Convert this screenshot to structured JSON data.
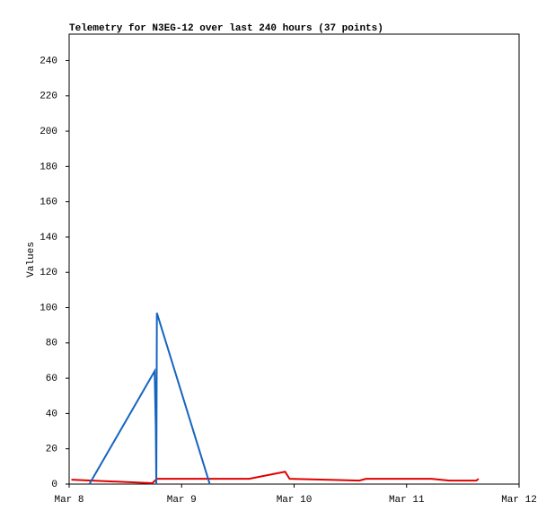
{
  "chart_data": {
    "type": "line",
    "title": "Telemetry for N3EG-12 over last 240 hours (37 points)",
    "y_label": "Values",
    "xlim": [
      8,
      12
    ],
    "xticks": [
      {
        "value": 8,
        "label": "Mar 8"
      },
      {
        "value": 9,
        "label": "Mar 9"
      },
      {
        "value": 10,
        "label": "Mar 10"
      },
      {
        "value": 11,
        "label": "Mar 11"
      },
      {
        "value": 12,
        "label": "Mar 12"
      }
    ],
    "ylim": [
      0,
      255
    ],
    "yticks": [
      0,
      20,
      40,
      60,
      80,
      100,
      120,
      140,
      160,
      180,
      200,
      220,
      240
    ],
    "series": [
      {
        "color": "#e00000",
        "x": [
          8.02,
          8.74,
          8.78,
          9.6,
          9.92,
          9.96,
          10.58,
          10.64,
          11.22,
          11.38,
          11.62,
          11.64
        ],
        "values": [
          2.5,
          0.5,
          3,
          3,
          7,
          3,
          2,
          3,
          3,
          2,
          2,
          3
        ]
      },
      {
        "color": "#1565c0",
        "x": [
          8.18,
          8.76,
          8.77,
          8.775,
          8.78,
          9.25
        ],
        "values": [
          0,
          64,
          33,
          0,
          97,
          0
        ]
      }
    ]
  }
}
